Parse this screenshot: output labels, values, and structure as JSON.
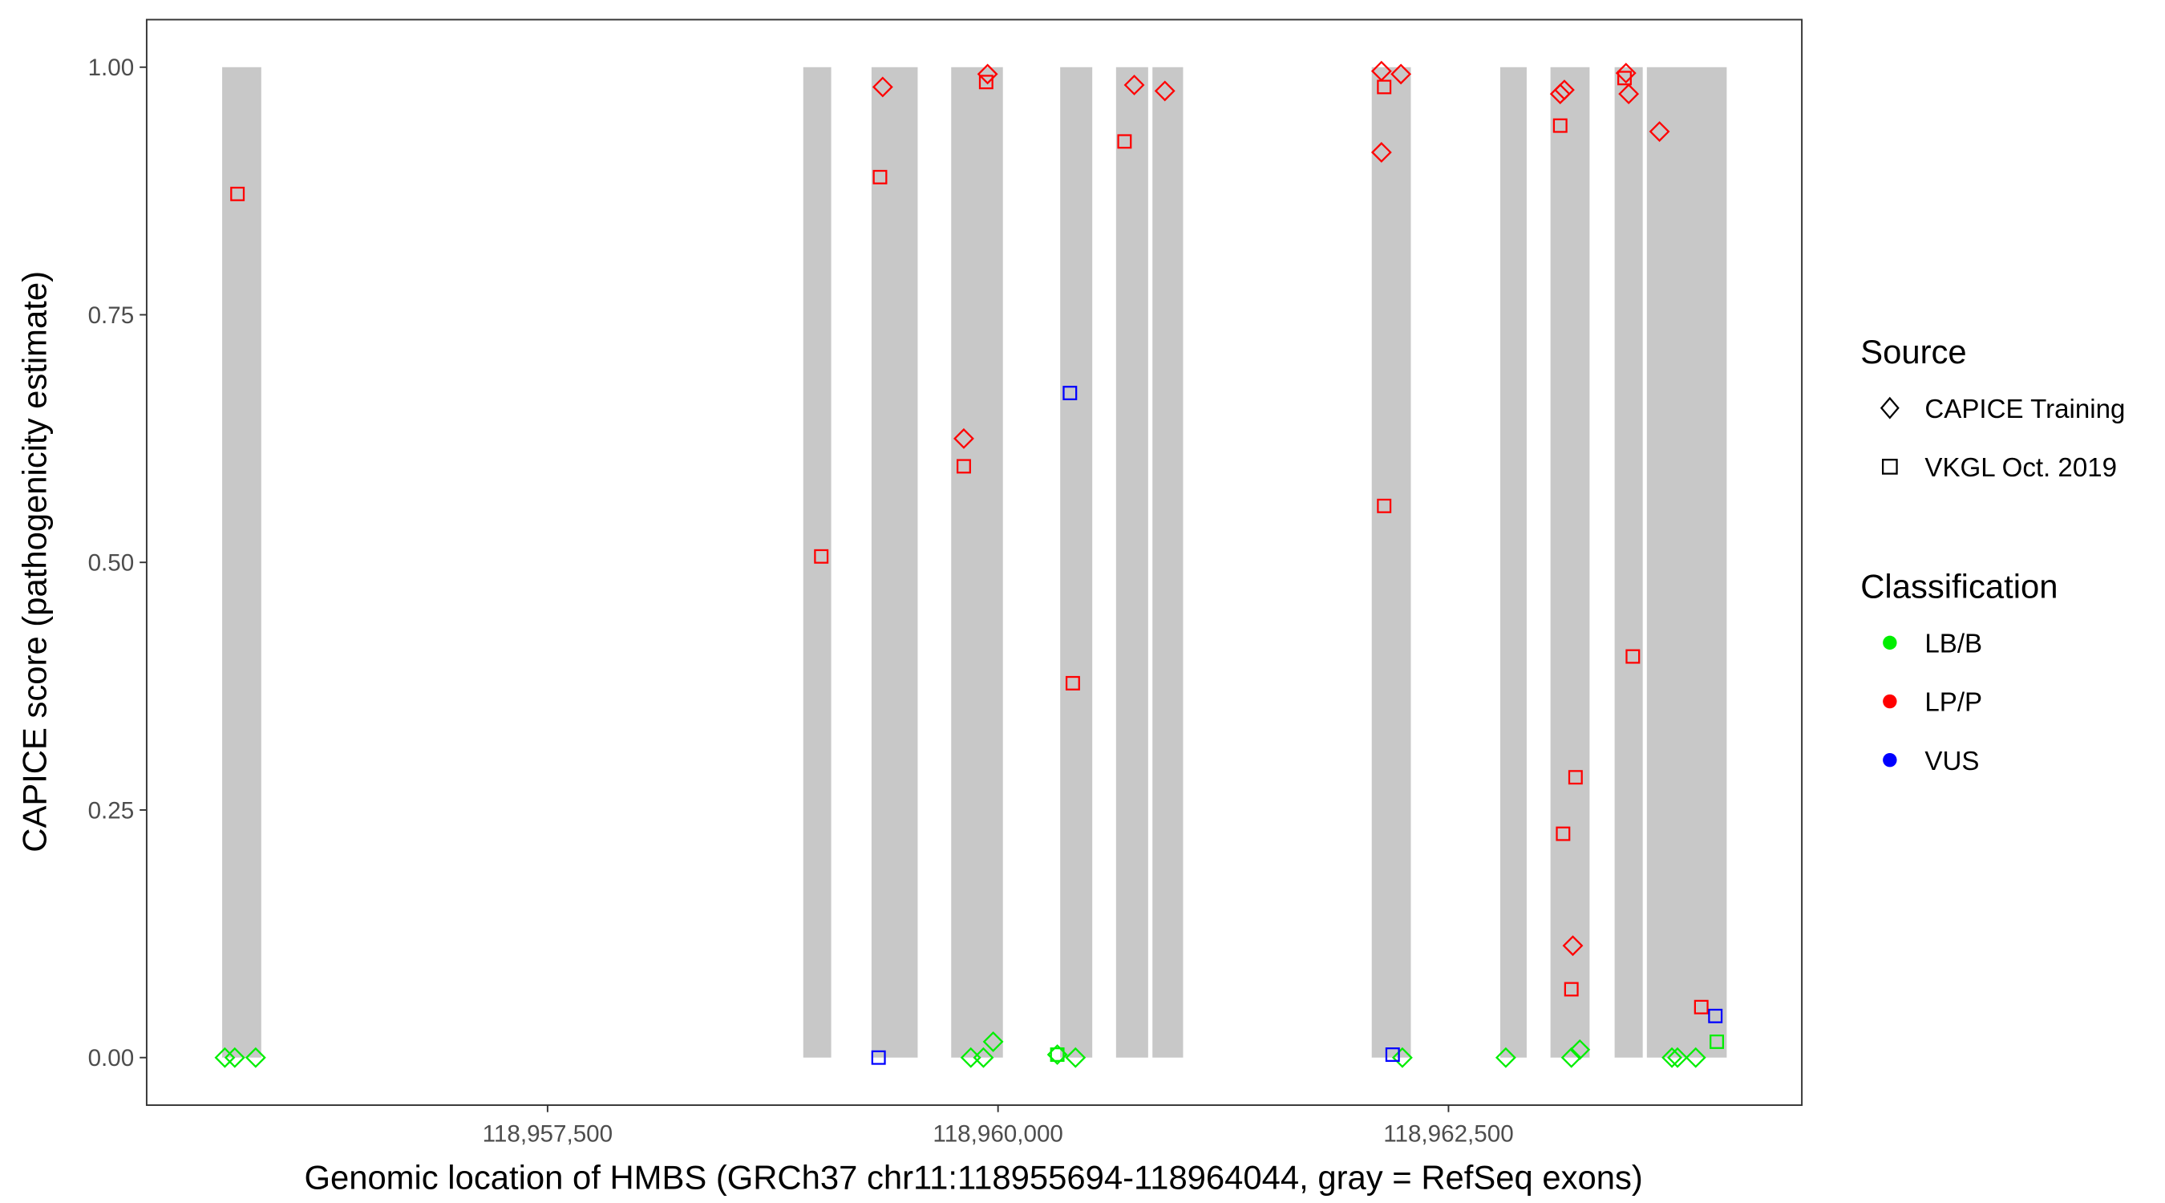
{
  "chart_data": {
    "type": "scatter",
    "title": "",
    "xlabel": "Genomic location of HMBS (GRCh37 chr11:118955694-118964044, gray = RefSeq exons)",
    "ylabel": "CAPICE score (pathogenicity estimate)",
    "xlim": [
      118955275,
      118964461
    ],
    "ylim": [
      -0.048,
      1.048
    ],
    "xticks": [
      118957500,
      118960000,
      118962500
    ],
    "xtick_labels": [
      "118,957,500",
      "118,960,000",
      "118,962,500"
    ],
    "yticks": [
      0,
      0.25,
      0.5,
      0.75,
      1.0
    ],
    "ytick_labels": [
      "0.00",
      "0.25",
      "0.50",
      "0.75",
      "1.00"
    ],
    "grid": false,
    "exons": [
      [
        118955694,
        118955911
      ],
      [
        118958919,
        118959074
      ],
      [
        118959298,
        118959554
      ],
      [
        118959740,
        118960027
      ],
      [
        118960345,
        118960523
      ],
      [
        118960655,
        118960833
      ],
      [
        118960857,
        118961027
      ],
      [
        118962074,
        118962291
      ],
      [
        118962787,
        118962934
      ],
      [
        118963066,
        118963283
      ],
      [
        118963422,
        118963578
      ],
      [
        118963601,
        118964044
      ]
    ],
    "colors": {
      "LB/B": "#00ee00",
      "LP/P": "#ff0000",
      "VUS": "#0000ff"
    },
    "legend": {
      "placement": "right",
      "source_title": "Source",
      "source_items": [
        {
          "label": "CAPICE Training",
          "shape": "diamond"
        },
        {
          "label": "VKGL Oct. 2019",
          "shape": "square"
        }
      ],
      "class_title": "Classification",
      "class_items": [
        {
          "label": "LB/B"
        },
        {
          "label": "LP/P"
        },
        {
          "label": "VUS"
        }
      ]
    },
    "points": [
      {
        "x": 118955709,
        "y": 0,
        "source": "diamond",
        "cls": "LB/B"
      },
      {
        "x": 118955764,
        "y": 0,
        "source": "diamond",
        "cls": "LB/B"
      },
      {
        "x": 118955880,
        "y": 0,
        "source": "diamond",
        "cls": "LB/B"
      },
      {
        "x": 118959849,
        "y": 0,
        "source": "diamond",
        "cls": "LB/B"
      },
      {
        "x": 118959919,
        "y": 0,
        "source": "diamond",
        "cls": "LB/B"
      },
      {
        "x": 118959973,
        "y": 0.016,
        "source": "diamond",
        "cls": "LB/B"
      },
      {
        "x": 118960329,
        "y": 0.003,
        "source": "diamond",
        "cls": "LB/B"
      },
      {
        "x": 118960430,
        "y": 0,
        "source": "diamond",
        "cls": "LB/B"
      },
      {
        "x": 118962244,
        "y": 0,
        "source": "diamond",
        "cls": "LB/B"
      },
      {
        "x": 118962818,
        "y": 0,
        "source": "diamond",
        "cls": "LB/B"
      },
      {
        "x": 118963182,
        "y": 0,
        "source": "diamond",
        "cls": "LB/B"
      },
      {
        "x": 118963229,
        "y": 0.008,
        "source": "diamond",
        "cls": "LB/B"
      },
      {
        "x": 118963740,
        "y": 0,
        "source": "diamond",
        "cls": "LB/B"
      },
      {
        "x": 118963771,
        "y": 0,
        "source": "diamond",
        "cls": "LB/B"
      },
      {
        "x": 118963872,
        "y": 0,
        "source": "diamond",
        "cls": "LB/B"
      },
      {
        "x": 118960329,
        "y": 0.003,
        "source": "square",
        "cls": "LB/B"
      },
      {
        "x": 118963989,
        "y": 0.016,
        "source": "square",
        "cls": "LB/B"
      },
      {
        "x": 118955779,
        "y": 0.872,
        "source": "square",
        "cls": "LP/P"
      },
      {
        "x": 118959019,
        "y": 0.506,
        "source": "square",
        "cls": "LP/P"
      },
      {
        "x": 118959345,
        "y": 0.889,
        "source": "square",
        "cls": "LP/P"
      },
      {
        "x": 118959810,
        "y": 0.597,
        "source": "square",
        "cls": "LP/P"
      },
      {
        "x": 118959934,
        "y": 0.985,
        "source": "square",
        "cls": "LP/P"
      },
      {
        "x": 118960415,
        "y": 0.378,
        "source": "square",
        "cls": "LP/P"
      },
      {
        "x": 118960702,
        "y": 0.925,
        "source": "square",
        "cls": "LP/P"
      },
      {
        "x": 118962143,
        "y": 0.98,
        "source": "square",
        "cls": "LP/P"
      },
      {
        "x": 118962143,
        "y": 0.557,
        "source": "square",
        "cls": "LP/P"
      },
      {
        "x": 118963120,
        "y": 0.941,
        "source": "square",
        "cls": "LP/P"
      },
      {
        "x": 118963136,
        "y": 0.226,
        "source": "square",
        "cls": "LP/P"
      },
      {
        "x": 118963205,
        "y": 0.283,
        "source": "square",
        "cls": "LP/P"
      },
      {
        "x": 118963182,
        "y": 0.069,
        "source": "square",
        "cls": "LP/P"
      },
      {
        "x": 118963477,
        "y": 0.989,
        "source": "square",
        "cls": "LP/P"
      },
      {
        "x": 118963523,
        "y": 0.405,
        "source": "square",
        "cls": "LP/P"
      },
      {
        "x": 118963903,
        "y": 0.051,
        "source": "square",
        "cls": "LP/P"
      },
      {
        "x": 118959360,
        "y": 0.98,
        "source": "diamond",
        "cls": "LP/P"
      },
      {
        "x": 118959810,
        "y": 0.625,
        "source": "diamond",
        "cls": "LP/P"
      },
      {
        "x": 118959942,
        "y": 0.993,
        "source": "diamond",
        "cls": "LP/P"
      },
      {
        "x": 118960756,
        "y": 0.982,
        "source": "diamond",
        "cls": "LP/P"
      },
      {
        "x": 118960926,
        "y": 0.976,
        "source": "diamond",
        "cls": "LP/P"
      },
      {
        "x": 118962128,
        "y": 0.996,
        "source": "diamond",
        "cls": "LP/P"
      },
      {
        "x": 118962236,
        "y": 0.993,
        "source": "diamond",
        "cls": "LP/P"
      },
      {
        "x": 118962128,
        "y": 0.914,
        "source": "diamond",
        "cls": "LP/P"
      },
      {
        "x": 118963120,
        "y": 0.973,
        "source": "diamond",
        "cls": "LP/P"
      },
      {
        "x": 118963143,
        "y": 0.977,
        "source": "diamond",
        "cls": "LP/P"
      },
      {
        "x": 118963190,
        "y": 0.113,
        "source": "diamond",
        "cls": "LP/P"
      },
      {
        "x": 118963485,
        "y": 0.994,
        "source": "diamond",
        "cls": "LP/P"
      },
      {
        "x": 118963500,
        "y": 0.973,
        "source": "diamond",
        "cls": "LP/P"
      },
      {
        "x": 118963671,
        "y": 0.935,
        "source": "diamond",
        "cls": "LP/P"
      },
      {
        "x": 118959337,
        "y": 0,
        "source": "square",
        "cls": "VUS"
      },
      {
        "x": 118960399,
        "y": 0.671,
        "source": "square",
        "cls": "VUS"
      },
      {
        "x": 118962190,
        "y": 0.003,
        "source": "square",
        "cls": "VUS"
      },
      {
        "x": 118963981,
        "y": 0.042,
        "source": "square",
        "cls": "VUS"
      }
    ]
  }
}
